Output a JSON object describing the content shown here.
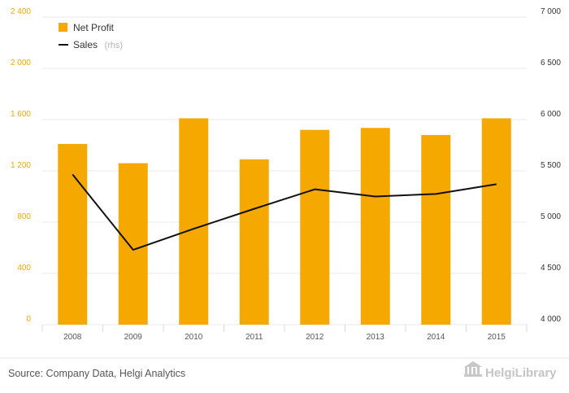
{
  "chart_data": {
    "type": "bar",
    "categories": [
      "2008",
      "2009",
      "2010",
      "2011",
      "2012",
      "2013",
      "2014",
      "2015"
    ],
    "series": [
      {
        "name": "Net Profit",
        "type": "bar",
        "axis": "left",
        "values": [
          1410,
          1260,
          1610,
          1290,
          1520,
          1535,
          1480,
          1610
        ]
      },
      {
        "name": "Sales",
        "type": "line",
        "axis": "right",
        "values": [
          5465,
          4730,
          4935,
          5130,
          5320,
          5250,
          5275,
          5370
        ]
      }
    ],
    "y_left": {
      "ylim": [
        0,
        2400
      ],
      "ticks": [
        "0",
        "400",
        "800",
        "1 200",
        "1 600",
        "2 000",
        "2 400"
      ]
    },
    "y_right": {
      "ylim": [
        4000,
        7000
      ],
      "ticks": [
        "4 000",
        "4 500",
        "5 000",
        "5 500",
        "6 000",
        "6 500",
        "7 000"
      ]
    },
    "grid": "horizontal",
    "legend": {
      "placement": "top-left",
      "items": [
        {
          "label": "Net Profit",
          "marker": "square"
        },
        {
          "label": "Sales",
          "suffix": "(rhs)",
          "marker": "line"
        }
      ]
    },
    "colors": {
      "bar": "#f5a800",
      "line": "#111111",
      "grid": "#e8e8e8",
      "left_ticks": "#f5a800"
    }
  },
  "footer": {
    "source": "Source: Company Data, Helgi Analytics",
    "brand": "HelgiLibrary",
    "brand_icon": "library-buildings-icon"
  }
}
